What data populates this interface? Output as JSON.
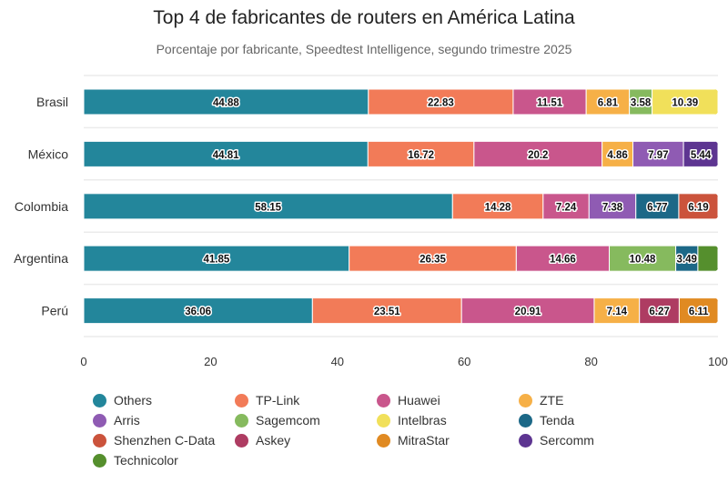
{
  "chart_data": {
    "type": "bar",
    "orientation": "horizontal",
    "stacked": true,
    "title": "Top 4 de fabricantes de routers en América Latina",
    "subtitle": "Porcentaje por fabricante, Speedtest Intelligence, segundo trimestre 2025",
    "xlabel": "",
    "ylabel": "",
    "xlim": [
      0,
      100
    ],
    "xticks": [
      "0",
      "20",
      "40",
      "60",
      "80",
      "100"
    ],
    "xtick_values": [
      0,
      20,
      40,
      60,
      80,
      100
    ],
    "grid": "horizontal row separators",
    "legend_position": "bottom",
    "categories": [
      "Brasil",
      "México",
      "Colombia",
      "Argentina",
      "Perú"
    ],
    "legend": [
      {
        "name": "Others",
        "color": "#23869b"
      },
      {
        "name": "TP-Link",
        "color": "#f27b58"
      },
      {
        "name": "Huawei",
        "color": "#c9568c"
      },
      {
        "name": "ZTE",
        "color": "#f6b047"
      },
      {
        "name": "Arris",
        "color": "#8f5bb3"
      },
      {
        "name": "Sagemcom",
        "color": "#86ba5e"
      },
      {
        "name": "Intelbras",
        "color": "#f1e05a"
      },
      {
        "name": "Tenda",
        "color": "#1c6887"
      },
      {
        "name": "Shenzhen C-Data",
        "color": "#cb533c"
      },
      {
        "name": "Askey",
        "color": "#ae3c62"
      },
      {
        "name": "MitraStar",
        "color": "#e08a22"
      },
      {
        "name": "Sercomm",
        "color": "#5d3591"
      },
      {
        "name": "Technicolor",
        "color": "#558f2d"
      }
    ],
    "rows": [
      {
        "category": "Brasil",
        "segments": [
          {
            "series": "Others",
            "value": 44.88,
            "label": "44.88"
          },
          {
            "series": "TP-Link",
            "value": 22.83,
            "label": "22.83"
          },
          {
            "series": "Huawei",
            "value": 11.51,
            "label": "11.51"
          },
          {
            "series": "ZTE",
            "value": 6.81,
            "label": "6.81"
          },
          {
            "series": "Sagemcom",
            "value": 3.58,
            "label": "3.58"
          },
          {
            "series": "Intelbras",
            "value": 10.39,
            "label": "10.39"
          }
        ]
      },
      {
        "category": "México",
        "segments": [
          {
            "series": "Others",
            "value": 44.81,
            "label": "44.81"
          },
          {
            "series": "TP-Link",
            "value": 16.72,
            "label": "16.72"
          },
          {
            "series": "Huawei",
            "value": 20.2,
            "label": "20.2"
          },
          {
            "series": "ZTE",
            "value": 4.86,
            "label": "4.86"
          },
          {
            "series": "Arris",
            "value": 7.97,
            "label": "7.97"
          },
          {
            "series": "Sercomm",
            "value": 5.44,
            "label": "5.44"
          }
        ]
      },
      {
        "category": "Colombia",
        "segments": [
          {
            "series": "Others",
            "value": 58.15,
            "label": "58.15"
          },
          {
            "series": "TP-Link",
            "value": 14.28,
            "label": "14.28"
          },
          {
            "series": "Huawei",
            "value": 7.24,
            "label": "7.24"
          },
          {
            "series": "Arris",
            "value": 7.38,
            "label": "7.38"
          },
          {
            "series": "Tenda",
            "value": 6.77,
            "label": "6.77"
          },
          {
            "series": "Shenzhen C-Data",
            "value": 6.19,
            "label": "6.19"
          }
        ]
      },
      {
        "category": "Argentina",
        "segments": [
          {
            "series": "Others",
            "value": 41.85,
            "label": "41.85"
          },
          {
            "series": "TP-Link",
            "value": 26.35,
            "label": "26.35"
          },
          {
            "series": "Huawei",
            "value": 14.66,
            "label": "14.66"
          },
          {
            "series": "Sagemcom",
            "value": 10.48,
            "label": "10.48"
          },
          {
            "series": "Tenda",
            "value": 3.49,
            "label": "3.49"
          },
          {
            "series": "Technicolor",
            "value": 3.17,
            "label": ""
          }
        ]
      },
      {
        "category": "Perú",
        "segments": [
          {
            "series": "Others",
            "value": 36.06,
            "label": "36.06"
          },
          {
            "series": "TP-Link",
            "value": 23.51,
            "label": "23.51"
          },
          {
            "series": "Huawei",
            "value": 20.91,
            "label": "20.91"
          },
          {
            "series": "ZTE",
            "value": 7.14,
            "label": "7.14"
          },
          {
            "series": "Askey",
            "value": 6.27,
            "label": "6.27"
          },
          {
            "series": "MitraStar",
            "value": 6.11,
            "label": "6.11"
          }
        ]
      }
    ]
  }
}
